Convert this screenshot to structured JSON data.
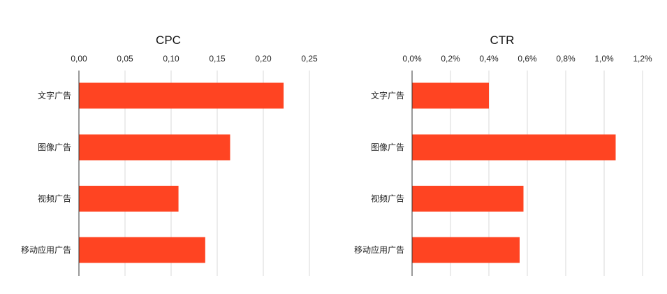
{
  "chart_data": [
    {
      "type": "bar",
      "orientation": "horizontal",
      "title": "CPC",
      "categories": [
        "文字广告",
        "图像广告",
        "视频广告",
        "移动应用广告"
      ],
      "values": [
        0.222,
        0.164,
        0.108,
        0.137
      ],
      "xlim": [
        0,
        0.25
      ],
      "ticks": [
        0,
        0.05,
        0.1,
        0.15,
        0.2,
        0.25
      ],
      "tick_labels": [
        "0,00",
        "0,05",
        "0,10",
        "0,15",
        "0,20",
        "0,25"
      ],
      "axis_position": "top",
      "grid": true,
      "color": "#FF4422"
    },
    {
      "type": "bar",
      "orientation": "horizontal",
      "title": "CTR",
      "categories": [
        "文字广告",
        "图像广告",
        "视频广告",
        "移动应用广告"
      ],
      "values": [
        0.4,
        1.06,
        0.58,
        0.56
      ],
      "xlim": [
        0,
        1.2
      ],
      "ticks": [
        0,
        0.2,
        0.4,
        0.6,
        0.8,
        1.0,
        1.2
      ],
      "tick_labels": [
        "0,0%",
        "0,2%",
        "0,4%",
        "0,6%",
        "0,8%",
        "1,0%",
        "1,2%"
      ],
      "axis_position": "top",
      "grid": true,
      "color": "#FF4422"
    }
  ]
}
